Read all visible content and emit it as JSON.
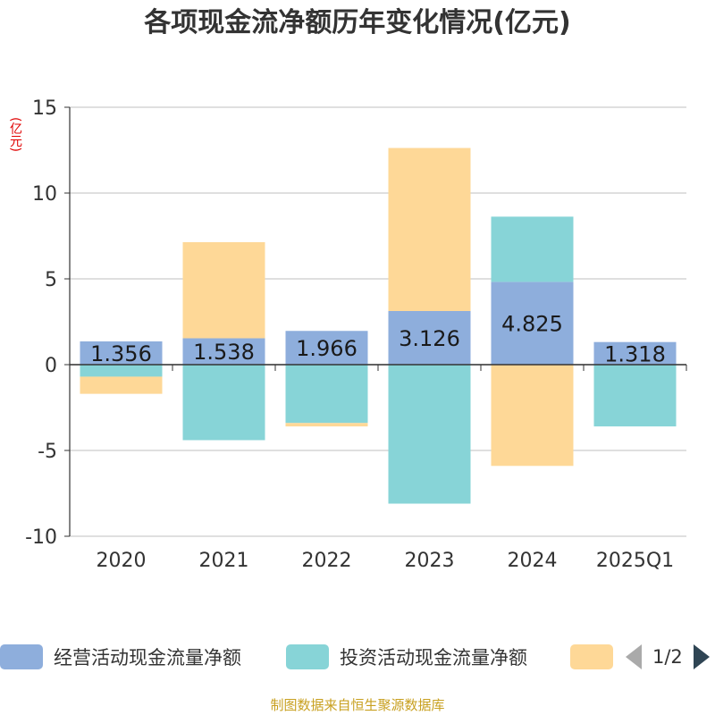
{
  "title": "各项现金流净额历年变化情况(亿元)",
  "unit_label": "(亿元)",
  "source": "制图数据来自恒生聚源数据库",
  "pager": {
    "text": "1/2"
  },
  "colors": {
    "operating": "#8eaedc",
    "investing": "#87d4d7",
    "financing": "#fed897",
    "grid": "#cccccc",
    "axis": "#333333"
  },
  "legend": [
    {
      "label": "经营活动现金流量净额",
      "color": "#8eaedc"
    },
    {
      "label": "投资活动现金流量净额",
      "color": "#87d4d7"
    },
    {
      "label": "",
      "color": "#fed897"
    }
  ],
  "chart_data": {
    "type": "bar",
    "stacked": true,
    "categories": [
      "2020",
      "2021",
      "2022",
      "2023",
      "2024",
      "2025Q1"
    ],
    "ylim": [
      -10,
      15
    ],
    "yticks": [
      15,
      10,
      5,
      0,
      -5,
      -10
    ],
    "series": [
      {
        "name": "经营活动现金流量净额",
        "values": [
          1.356,
          1.538,
          1.966,
          3.126,
          4.825,
          1.318
        ],
        "labels": [
          "1.356",
          "1.538",
          "1.966",
          "3.126",
          "4.825",
          "1.318"
        ]
      },
      {
        "name": "投资活动现金流量净额",
        "values": [
          -0.7,
          -4.4,
          -3.4,
          -8.1,
          3.8,
          -3.6
        ]
      },
      {
        "values": [
          -1.0,
          5.6,
          -0.2,
          9.5,
          -5.9,
          0
        ]
      }
    ],
    "grid": true,
    "legend_position": "bottom"
  }
}
